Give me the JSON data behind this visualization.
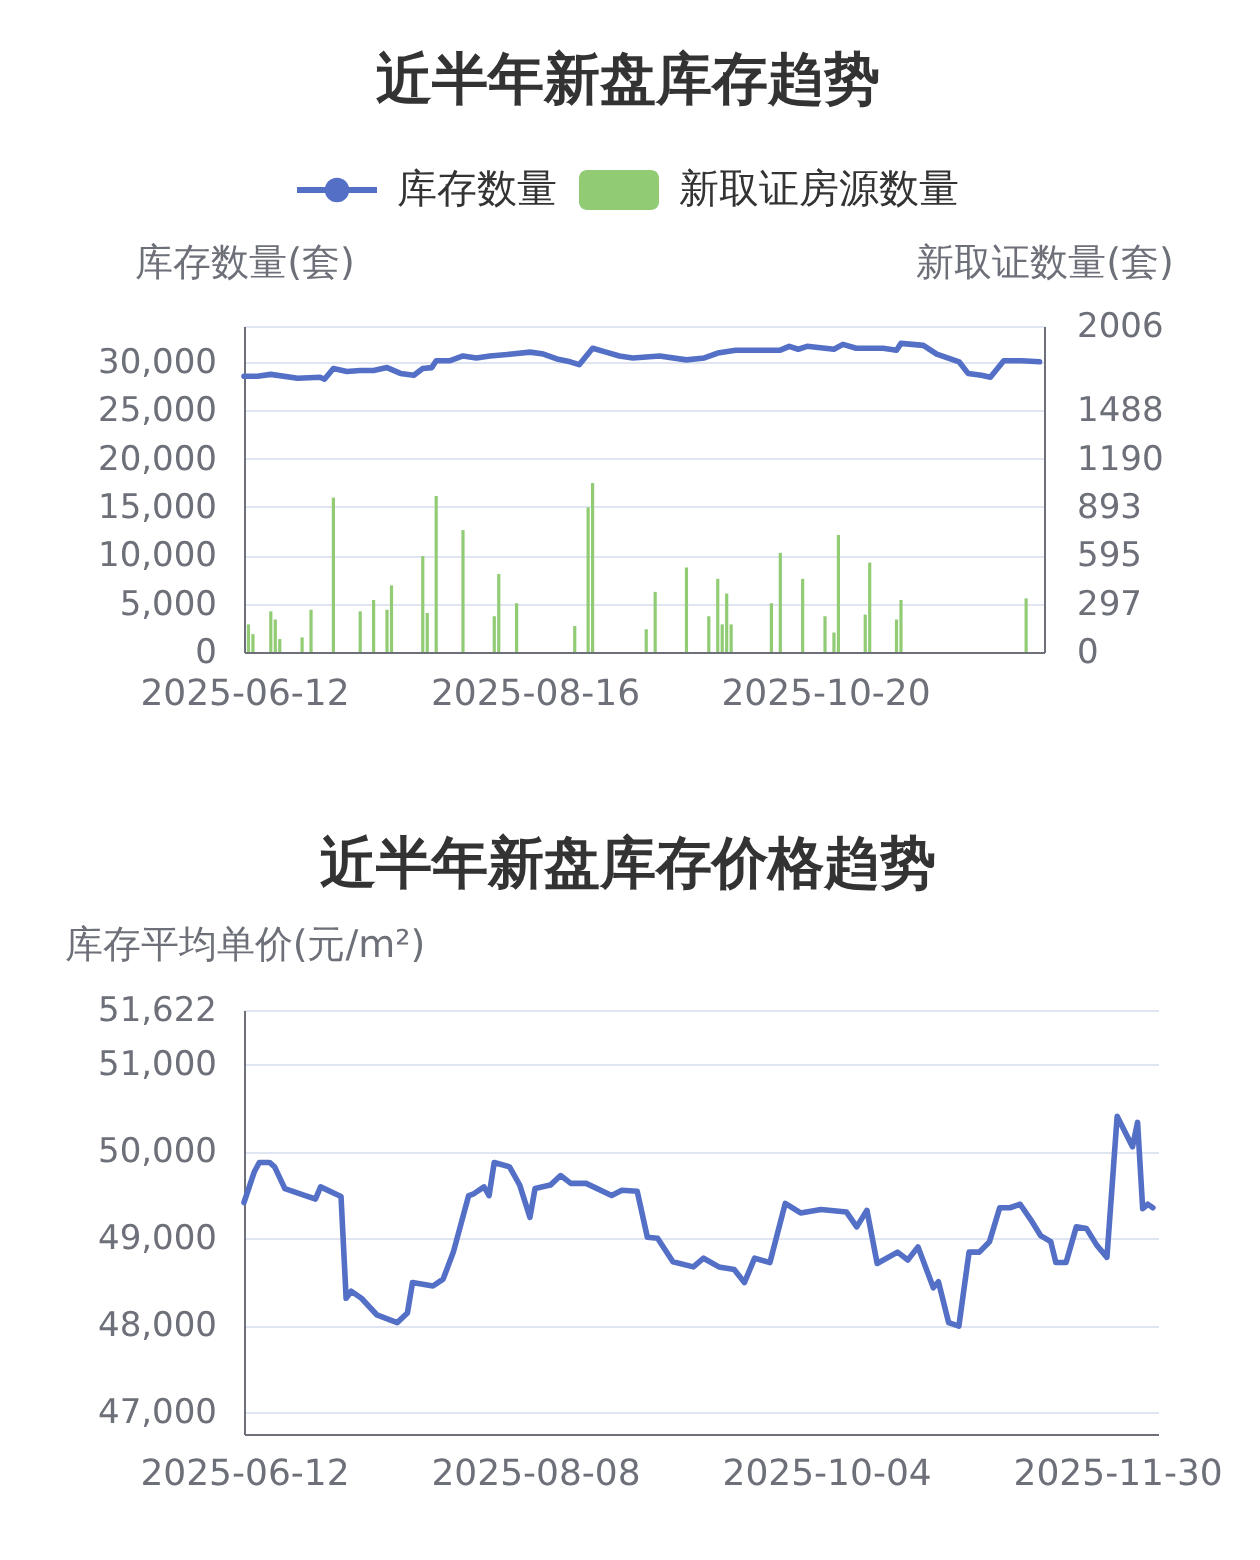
{
  "chart_data": [
    {
      "type": "line",
      "title": "近半年新盘库存趋势",
      "ylabel": "库存数量(套)",
      "y2label": "新取证数量(套)",
      "legend": "top",
      "grid": "y",
      "xlim": [
        "2025-06-12",
        "2025-12-08"
      ],
      "xticks": [
        "2025-06-12",
        "2025-08-16",
        "2025-10-20"
      ],
      "ylim": [
        0,
        33700
      ],
      "yticks": [
        {
          "value": 0,
          "label": "0"
        },
        {
          "value": 5000,
          "label": "5,000"
        },
        {
          "value": 10000,
          "label": "10,000"
        },
        {
          "value": 15000,
          "label": "15,000"
        },
        {
          "value": 20000,
          "label": "20,000"
        },
        {
          "value": 25000,
          "label": "25,000"
        },
        {
          "value": 30000,
          "label": "30,000"
        },
        {
          "value": 33700,
          "label": null
        }
      ],
      "y2lim": [
        0,
        2006
      ],
      "y2ticks": [
        0,
        297,
        595,
        893,
        1190,
        1488,
        2006
      ],
      "series": [
        {
          "name": "库存数量",
          "type": "line",
          "color": "#5470c6",
          "axis": "y",
          "x": [
            "2025-06-12",
            "2025-06-15",
            "2025-06-18",
            "2025-06-24",
            "2025-06-29",
            "2025-06-30",
            "2025-07-02",
            "2025-07-05",
            "2025-07-08",
            "2025-07-11",
            "2025-07-14",
            "2025-07-17",
            "2025-07-20",
            "2025-07-22",
            "2025-07-24",
            "2025-07-25",
            "2025-07-28",
            "2025-07-31",
            "2025-08-03",
            "2025-08-06",
            "2025-08-11",
            "2025-08-15",
            "2025-08-18",
            "2025-08-21",
            "2025-08-24",
            "2025-08-26",
            "2025-08-29",
            "2025-09-01",
            "2025-09-04",
            "2025-09-07",
            "2025-09-13",
            "2025-09-19",
            "2025-09-23",
            "2025-09-26",
            "2025-09-30",
            "2025-10-04",
            "2025-10-10",
            "2025-10-12",
            "2025-10-14",
            "2025-10-16",
            "2025-10-22",
            "2025-10-24",
            "2025-10-27",
            "2025-11-02",
            "2025-11-05",
            "2025-11-06",
            "2025-11-11",
            "2025-11-14",
            "2025-11-19",
            "2025-11-21",
            "2025-11-24",
            "2025-11-26",
            "2025-11-29",
            "2025-12-03",
            "2025-12-07"
          ],
          "values": [
            28500,
            28500,
            28700,
            28300,
            28400,
            28200,
            29300,
            29000,
            29100,
            29100,
            29400,
            28800,
            28600,
            29300,
            29400,
            30100,
            30100,
            30600,
            30400,
            30600,
            30800,
            31000,
            30800,
            30300,
            30000,
            29700,
            31400,
            31000,
            30600,
            30400,
            30600,
            30200,
            30400,
            30900,
            31200,
            31200,
            31200,
            31600,
            31300,
            31600,
            31300,
            31800,
            31400,
            31400,
            31200,
            31900,
            31700,
            30800,
            30000,
            28800,
            28600,
            28400,
            30100,
            30100,
            30000
          ]
        },
        {
          "name": "新取证房源数量",
          "type": "bar",
          "color": "#91cc75",
          "axis": "y2",
          "x": [
            "2025-06-13",
            "2025-06-14",
            "2025-06-18",
            "2025-06-19",
            "2025-06-20",
            "2025-06-25",
            "2025-06-27",
            "2025-07-02",
            "2025-07-08",
            "2025-07-11",
            "2025-07-14",
            "2025-07-15",
            "2025-07-22",
            "2025-07-23",
            "2025-07-25",
            "2025-07-31",
            "2025-08-07",
            "2025-08-08",
            "2025-08-12",
            "2025-08-25",
            "2025-08-28",
            "2025-08-29",
            "2025-09-10",
            "2025-09-12",
            "2025-09-19",
            "2025-09-24",
            "2025-09-26",
            "2025-09-27",
            "2025-09-28",
            "2025-09-29",
            "2025-10-08",
            "2025-10-10",
            "2025-10-15",
            "2025-10-20",
            "2025-10-22",
            "2025-10-23",
            "2025-10-29",
            "2025-10-30",
            "2025-11-05",
            "2025-11-06",
            "2025-12-04"
          ],
          "values": [
            170,
            110,
            250,
            200,
            80,
            90,
            260,
            950,
            250,
            320,
            260,
            410,
            590,
            240,
            960,
            750,
            220,
            480,
            300,
            160,
            890,
            1040,
            140,
            370,
            520,
            220,
            450,
            170,
            360,
            170,
            300,
            610,
            450,
            220,
            120,
            720,
            230,
            550,
            200,
            320,
            330
          ]
        }
      ]
    },
    {
      "type": "line",
      "title": "近半年新盘库存价格趋势",
      "ylabel": "库存平均单价(元/m²)",
      "grid": "y",
      "xlim": [
        "2025-06-12",
        "2025-12-08"
      ],
      "xticks": [
        "2025-06-12",
        "2025-08-08",
        "2025-10-04",
        "2025-11-30"
      ],
      "ylim": [
        46750,
        51622
      ],
      "yticks": [
        {
          "value": 47000,
          "label": "47,000"
        },
        {
          "value": 48000,
          "label": "48,000"
        },
        {
          "value": 49000,
          "label": "49,000"
        },
        {
          "value": 50000,
          "label": "50,000"
        },
        {
          "value": 51000,
          "label": "51,000"
        },
        {
          "value": 51622,
          "label": "51,622"
        }
      ],
      "series": [
        {
          "color": "#5470c6",
          "x": [
            "2025-06-12",
            "2025-06-14",
            "2025-06-15",
            "2025-06-17",
            "2025-06-18",
            "2025-06-20",
            "2025-06-24",
            "2025-06-26",
            "2025-06-27",
            "2025-07-01",
            "2025-07-02",
            "2025-07-03",
            "2025-07-05",
            "2025-07-08",
            "2025-07-12",
            "2025-07-14",
            "2025-07-15",
            "2025-07-19",
            "2025-07-21",
            "2025-07-23",
            "2025-07-26",
            "2025-07-27",
            "2025-07-29",
            "2025-07-30",
            "2025-07-31",
            "2025-08-03",
            "2025-08-05",
            "2025-08-07",
            "2025-08-08",
            "2025-08-11",
            "2025-08-13",
            "2025-08-15",
            "2025-08-18",
            "2025-08-23",
            "2025-08-25",
            "2025-08-28",
            "2025-08-30",
            "2025-09-01",
            "2025-09-04",
            "2025-09-08",
            "2025-09-10",
            "2025-09-13",
            "2025-09-16",
            "2025-09-18",
            "2025-09-20",
            "2025-09-23",
            "2025-09-26",
            "2025-09-29",
            "2025-10-03",
            "2025-10-08",
            "2025-10-10",
            "2025-10-12",
            "2025-10-14",
            "2025-10-18",
            "2025-10-20",
            "2025-10-22",
            "2025-10-25",
            "2025-10-26",
            "2025-10-28",
            "2025-10-30",
            "2025-11-01",
            "2025-11-03",
            "2025-11-05",
            "2025-11-07",
            "2025-11-09",
            "2025-11-11",
            "2025-11-13",
            "2025-11-15",
            "2025-11-17",
            "2025-11-18",
            "2025-11-20",
            "2025-11-22",
            "2025-11-24",
            "2025-11-26",
            "2025-11-28",
            "2025-11-30",
            "2025-12-03",
            "2025-12-04",
            "2025-12-05",
            "2025-12-06",
            "2025-12-07"
          ],
          "values": [
            49410,
            49760,
            49870,
            49870,
            49820,
            49570,
            49490,
            49450,
            49590,
            49480,
            48310,
            48390,
            48310,
            48120,
            48030,
            48140,
            48490,
            48450,
            48530,
            48840,
            49490,
            49510,
            49590,
            49490,
            49870,
            49820,
            49610,
            49240,
            49570,
            49610,
            49720,
            49630,
            49630,
            49490,
            49550,
            49540,
            49010,
            49000,
            48730,
            48670,
            48770,
            48670,
            48640,
            48490,
            48770,
            48720,
            49400,
            49290,
            49330,
            49300,
            49130,
            49320,
            48710,
            48840,
            48750,
            48900,
            48430,
            48500,
            48030,
            47990,
            48840,
            48840,
            48960,
            49350,
            49350,
            49390,
            49220,
            49030,
            48960,
            48720,
            48720,
            49130,
            49110,
            48920,
            48780,
            50400,
            50050,
            50330,
            49340,
            49390,
            49350
          ]
        }
      ]
    }
  ]
}
